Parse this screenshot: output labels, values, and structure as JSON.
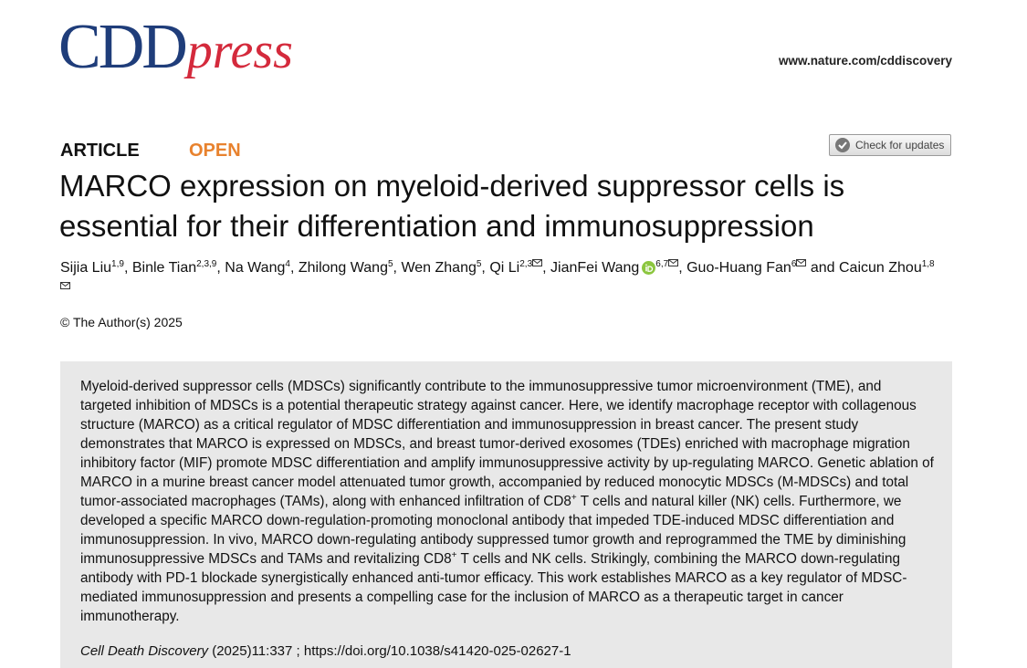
{
  "header": {
    "logo_main": "CDD",
    "logo_sub": "press",
    "url": "www.nature.com/cddiscovery"
  },
  "article": {
    "type": "ARTICLE",
    "access": "OPEN",
    "check_updates": "Check for updates",
    "title": "MARCO expression on myeloid-derived suppressor cells is essential for their differentiation and immunosuppression",
    "authors": [
      {
        "name": "Sijia Liu",
        "affiliations": "1,9",
        "after": ","
      },
      {
        "name": "Binle Tian",
        "affiliations": "2,3,9",
        "after": ","
      },
      {
        "name": "Na Wang",
        "affiliations": "4",
        "after": ","
      },
      {
        "name": "Zhilong Wang",
        "affiliations": "5",
        "after": ","
      },
      {
        "name": "Wen Zhang",
        "affiliations": "5",
        "after": ","
      },
      {
        "name": "Qi Li",
        "affiliations": "2,3",
        "corresponding": true,
        "after": ","
      },
      {
        "name": "JianFei Wang",
        "affiliations": "6,7",
        "orcid": true,
        "corresponding": true,
        "after": ","
      },
      {
        "name": "Guo-Huang Fan",
        "affiliations": "6",
        "corresponding": true,
        "after": "and"
      },
      {
        "name": "Caicun Zhou",
        "affiliations": "1,8",
        "corresponding": true
      }
    ],
    "copyright": "© The Author(s) 2025",
    "abstract": [
      {
        "text": "Myeloid-derived suppressor cells (MDSCs) significantly contribute to the immunosuppressive tumor microenvironment (TME), and targeted inhibition of MDSCs is a potential therapeutic strategy against cancer. Here, we identify macrophage receptor with collagenous structure (MARCO) as a critical regulator of MDSC differentiation and immunosuppression in breast cancer. The present study demonstrates that MARCO is expressed on MDSCs, and breast tumor-derived exosomes (TDEs) enriched with macrophage migration inhibitory factor (MIF) promote MDSC differentiation and amplify immunosuppressive activity by up-regulating MARCO. Genetic ablation of MARCO in a murine breast cancer model attenuated tumor growth, accompanied by reduced monocytic MDSCs (M-MDSCs) and total tumor-associated macrophages (TAMs), along with enhanced infiltration of CD8"
      },
      {
        "sup": "+"
      },
      {
        "text": " T cells and natural killer (NK) cells. Furthermore, we developed a specific MARCO down-regulation-promoting monoclonal antibody that impeded TDE-induced MDSC differentiation and immunosuppression. In vivo, MARCO down-regulating antibody suppressed tumor growth and reprogrammed the TME by diminishing immunosuppressive MDSCs and TAMs and revitalizing CD8"
      },
      {
        "sup": "+"
      },
      {
        "text": " T cells and NK cells. Strikingly, combining the MARCO down-regulating antibody with PD-1 blockade synergistically enhanced anti-tumor efficacy. This work establishes MARCO as a key regulator of MDSC-mediated immunosuppression and presents a compelling case for the inclusion of MARCO as a therapeutic target in cancer immunotherapy."
      }
    ],
    "citation": {
      "journal": "Cell Death Discovery",
      "reference": "(2025)11:337 ; https://doi.org/10.1038/s41420-025-02627-1"
    }
  }
}
